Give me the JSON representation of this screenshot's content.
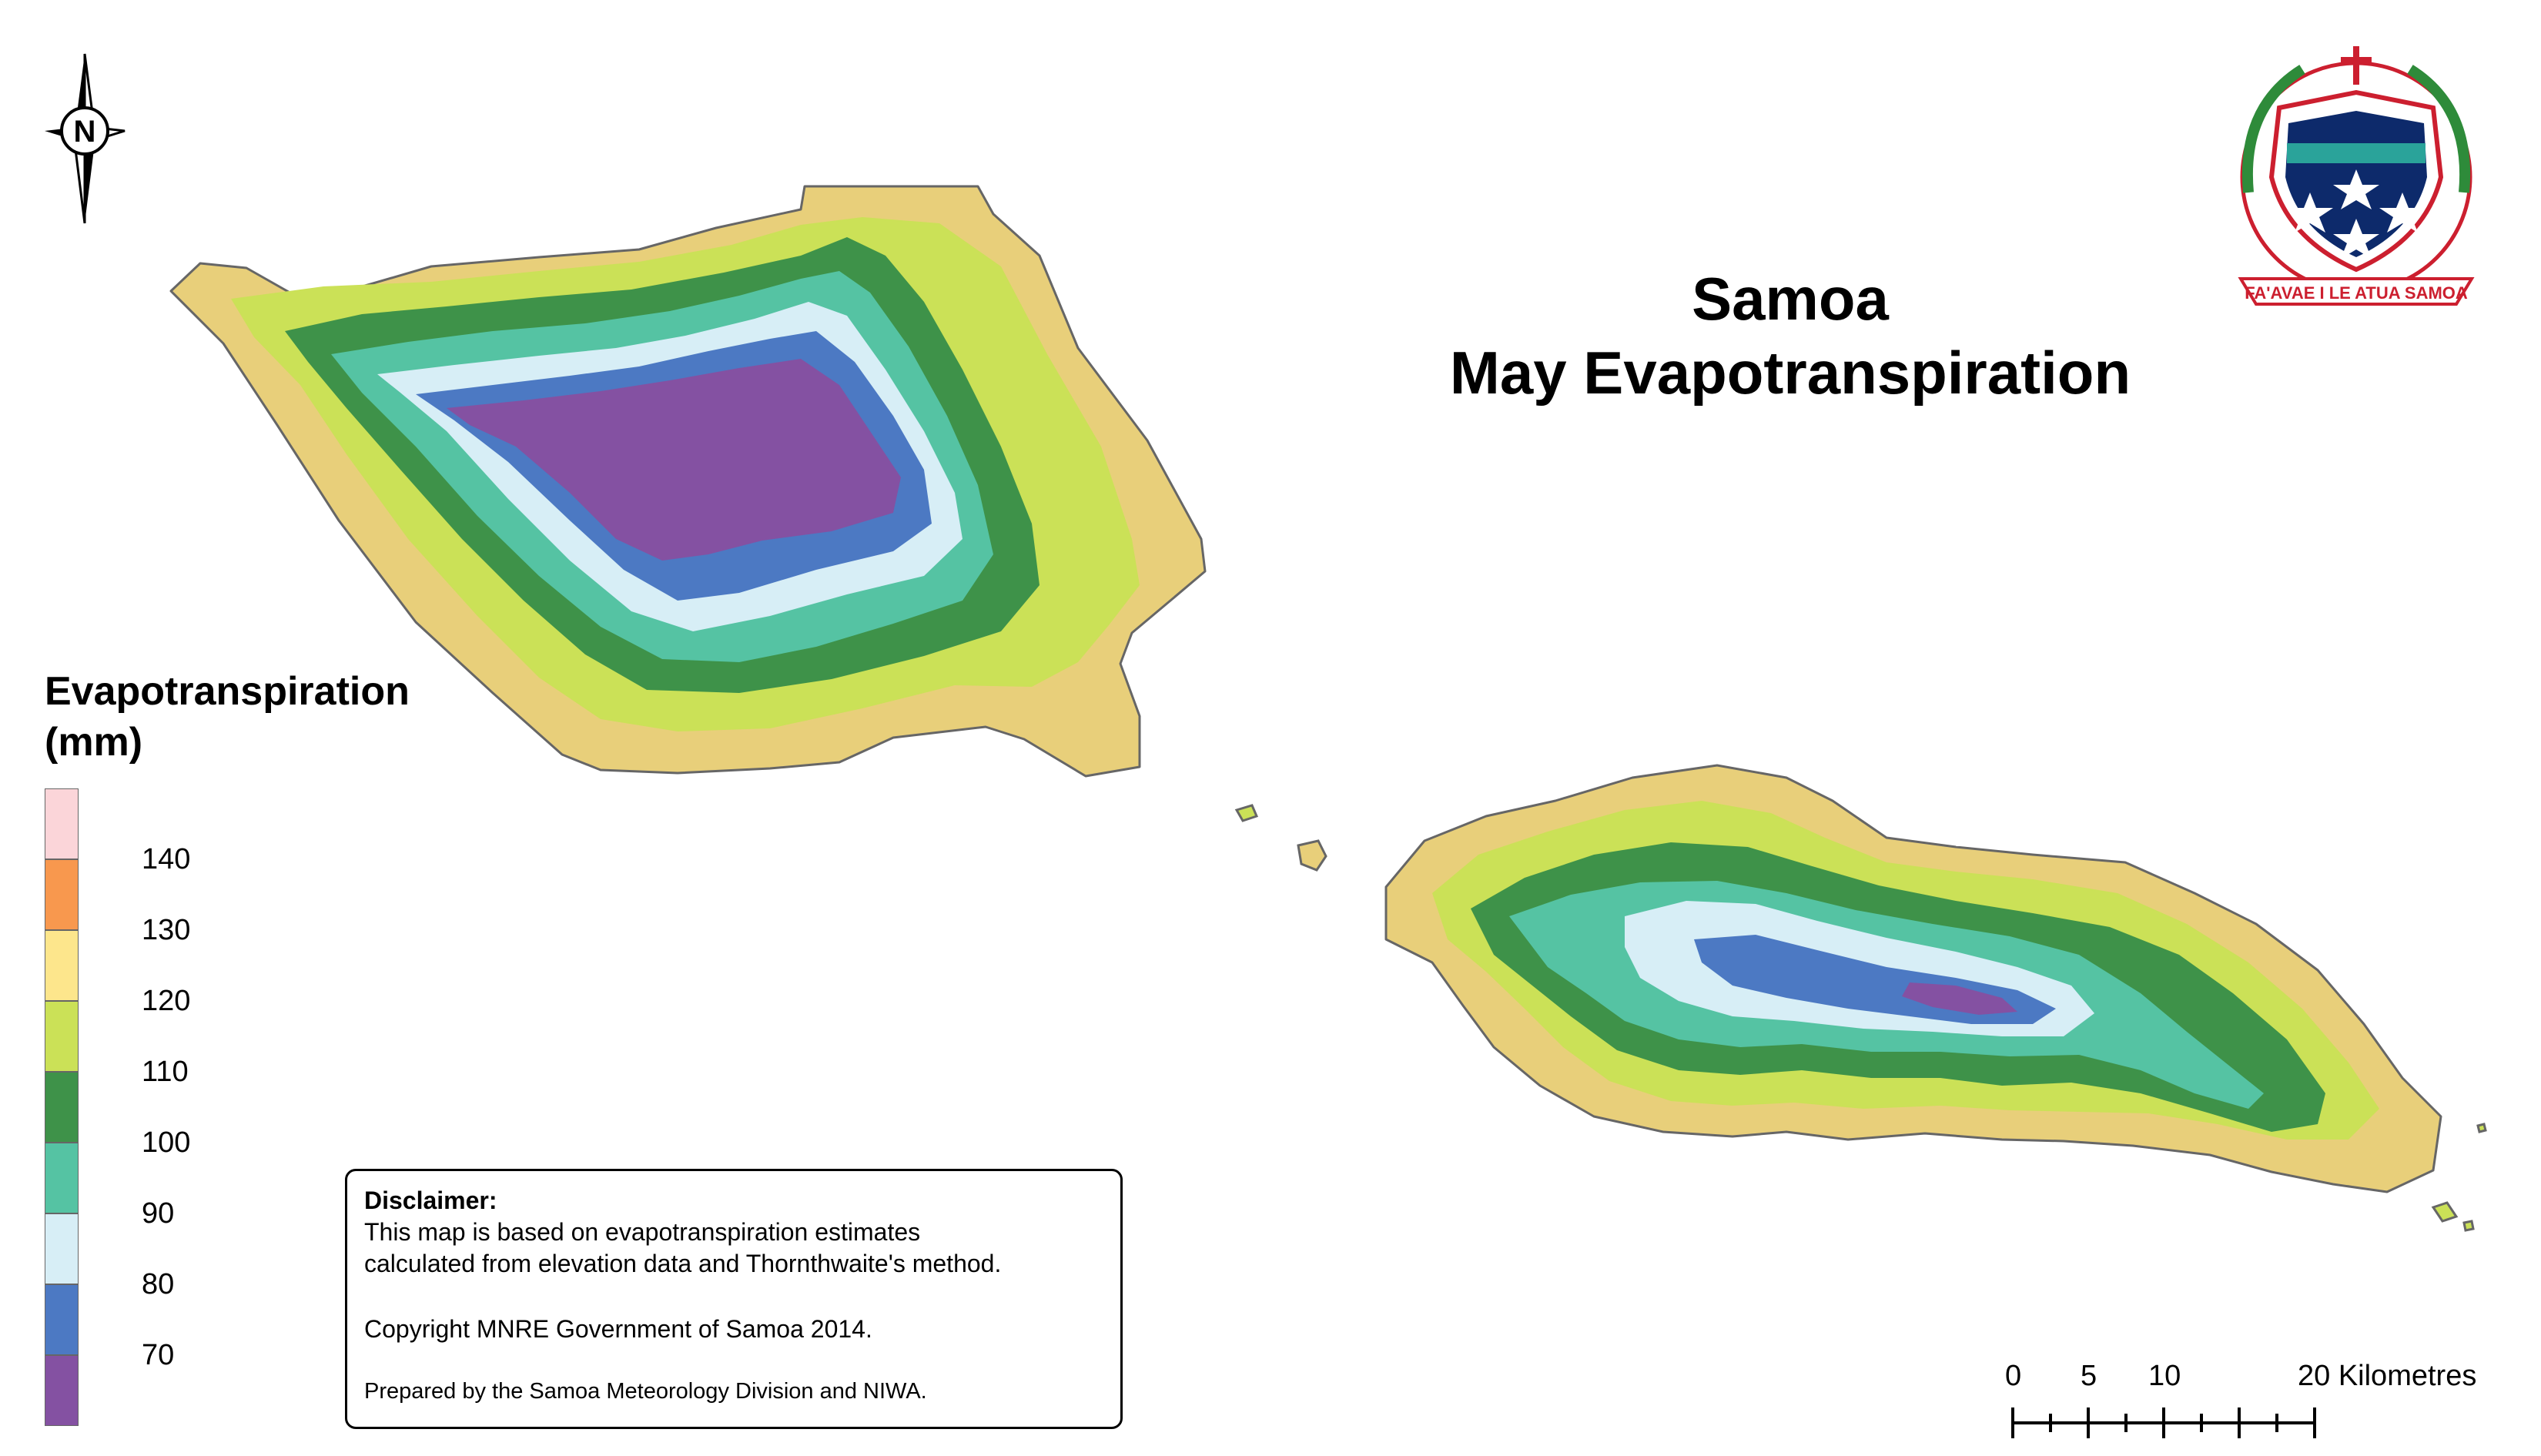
{
  "title": {
    "line1": "Samoa",
    "line2": "May Evapotranspiration"
  },
  "legend": {
    "title_line1": "Evapotranspiration",
    "title_line2": "(mm)",
    "classes": [
      {
        "color": "#fbd5d9"
      },
      {
        "color": "#f8984e",
        "label": "140"
      },
      {
        "color": "#fde68c",
        "label": "130"
      },
      {
        "color": "#cbe157",
        "label": "120"
      },
      {
        "color": "#3e9249",
        "label": "110"
      },
      {
        "color": "#55c3a3",
        "label": "100"
      },
      {
        "color": "#d7eef6",
        "label": "90"
      },
      {
        "color": "#4c79c3",
        "label": "80"
      },
      {
        "color": "#8451a2",
        "label": "70"
      }
    ]
  },
  "disclaimer": {
    "heading": "Disclaimer:",
    "line1": "This map is based on evapotranspiration estimates",
    "line2": "calculated from elevation data and Thornthwaite's method.",
    "copyright": "Copyright MNRE Government of Samoa 2014.",
    "prepared": "Prepared by the Samoa Meteorology Division and NIWA."
  },
  "scale_bar": {
    "labels": [
      "0",
      "5",
      "10",
      "20 Kilometres"
    ]
  },
  "north_arrow": {
    "letter": "N",
    "icon": "north-arrow-icon"
  },
  "emblem": {
    "motto": "FA'AVAE I LE ATUA SAMOA",
    "icon": "coat-of-arms-icon"
  },
  "islands": [
    "savaii",
    "upolu",
    "manono",
    "apolima",
    "nuutele"
  ]
}
